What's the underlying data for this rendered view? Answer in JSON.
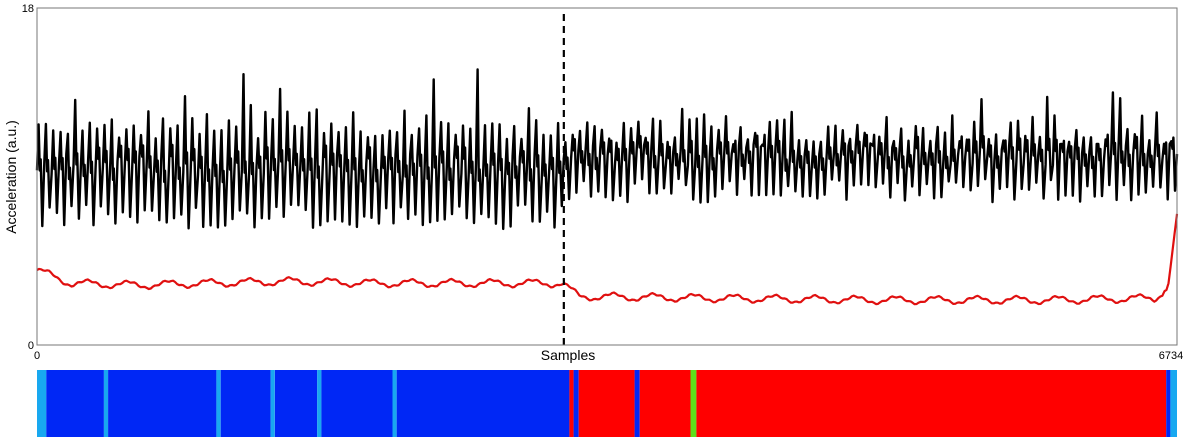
{
  "chart_data": {
    "type": "line",
    "title": "",
    "xlabel": "Samples",
    "ylabel": "Acceleration (a.u.)",
    "xlim": [
      0,
      6734
    ],
    "ylim": [
      0,
      18
    ],
    "x_ticks": [
      "0",
      "6734"
    ],
    "y_ticks": [
      "0",
      "18"
    ],
    "grid": false,
    "changepoint_x": 3112,
    "series": [
      {
        "color": "#000000",
        "description": "oscillating acceleration signal",
        "segments": [
          {
            "x_start": 0,
            "x_end": 3112,
            "cycles": 72,
            "min": 6.2,
            "max": 12.6,
            "spike_max": 15.2
          },
          {
            "x_start": 3112,
            "x_end": 6734,
            "cycles": 84,
            "min": 7.6,
            "max": 12.3,
            "spike_max": 13.6
          }
        ]
      },
      {
        "color": "#e01010",
        "description": "smoothed level",
        "points": [
          [
            0,
            4.0
          ],
          [
            200,
            3.3
          ],
          [
            600,
            3.2
          ],
          [
            1000,
            3.3
          ],
          [
            1500,
            3.4
          ],
          [
            2000,
            3.3
          ],
          [
            2500,
            3.3
          ],
          [
            3100,
            3.3
          ],
          [
            3200,
            2.6
          ],
          [
            4000,
            2.5
          ],
          [
            5000,
            2.4
          ],
          [
            6000,
            2.4
          ],
          [
            6600,
            2.5
          ],
          [
            6680,
            3.0
          ],
          [
            6734,
            7.0
          ]
        ]
      }
    ],
    "state_bar": {
      "colors": {
        "state_a": "#0027f5",
        "state_b": "#ff0000",
        "boundary": "#18a8f0",
        "green": "#5ee01a"
      },
      "segments": [
        {
          "start": 0,
          "end": 55,
          "color": "#18a8f0"
        },
        {
          "start": 55,
          "end": 395,
          "color": "#0027f5"
        },
        {
          "start": 395,
          "end": 420,
          "color": "#18a8f0"
        },
        {
          "start": 420,
          "end": 1060,
          "color": "#0027f5"
        },
        {
          "start": 1060,
          "end": 1085,
          "color": "#18a8f0"
        },
        {
          "start": 1085,
          "end": 1380,
          "color": "#0027f5"
        },
        {
          "start": 1380,
          "end": 1405,
          "color": "#18a8f0"
        },
        {
          "start": 1405,
          "end": 1655,
          "color": "#0027f5"
        },
        {
          "start": 1655,
          "end": 1680,
          "color": "#18a8f0"
        },
        {
          "start": 1680,
          "end": 2100,
          "color": "#0027f5"
        },
        {
          "start": 2100,
          "end": 2125,
          "color": "#18a8f0"
        },
        {
          "start": 2125,
          "end": 3145,
          "color": "#0027f5"
        },
        {
          "start": 3145,
          "end": 3170,
          "color": "#ff0000"
        },
        {
          "start": 3170,
          "end": 3200,
          "color": "#0027f5"
        },
        {
          "start": 3200,
          "end": 3530,
          "color": "#ff0000"
        },
        {
          "start": 3530,
          "end": 3560,
          "color": "#0027f5"
        },
        {
          "start": 3560,
          "end": 3860,
          "color": "#ff0000"
        },
        {
          "start": 3860,
          "end": 3895,
          "color": "#5ee01a"
        },
        {
          "start": 3895,
          "end": 6670,
          "color": "#ff0000"
        },
        {
          "start": 6670,
          "end": 6695,
          "color": "#0027f5"
        },
        {
          "start": 6695,
          "end": 6734,
          "color": "#18a8f0"
        }
      ]
    }
  }
}
